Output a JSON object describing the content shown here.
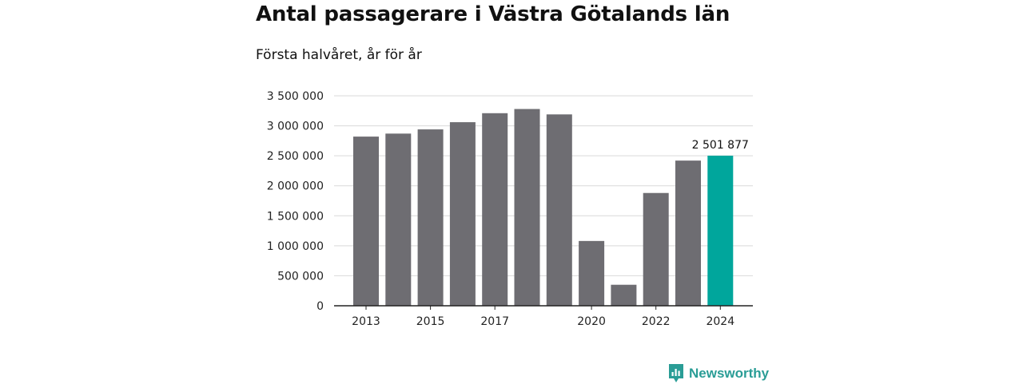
{
  "title": "Antal passagerare i Västra Götalands län",
  "subtitle": "Första halvåret, år för år",
  "brand": {
    "name": "Newsworthy",
    "icon": "newsworthy-logo-icon",
    "color": "#2a9d96"
  },
  "chart_data": {
    "type": "bar",
    "categories": [
      "2013",
      "2014",
      "2015",
      "2016",
      "2017",
      "2018",
      "2019",
      "2020",
      "2021",
      "2022",
      "2023",
      "2024"
    ],
    "tick_labels_shown": [
      "2013",
      "2015",
      "2017",
      "2020",
      "2022",
      "2024"
    ],
    "values": [
      2820000,
      2870000,
      2940000,
      3060000,
      3210000,
      3280000,
      3190000,
      1080000,
      350000,
      1880000,
      2420000,
      2501877
    ],
    "ylim": [
      0,
      3500000
    ],
    "yticks": [
      0,
      500000,
      1000000,
      1500000,
      2000000,
      2500000,
      3000000,
      3500000
    ],
    "ytick_labels": [
      "0",
      "500 000",
      "1 000 000",
      "1 500 000",
      "2 000 000",
      "2 500 000",
      "3 000 000",
      "3 500 000"
    ],
    "highlight_index": 11,
    "highlight_label": "2 501 877",
    "bar_color": "#6e6d72",
    "highlight_color": "#00a69c",
    "grid": true,
    "xlabel": "",
    "ylabel": ""
  }
}
